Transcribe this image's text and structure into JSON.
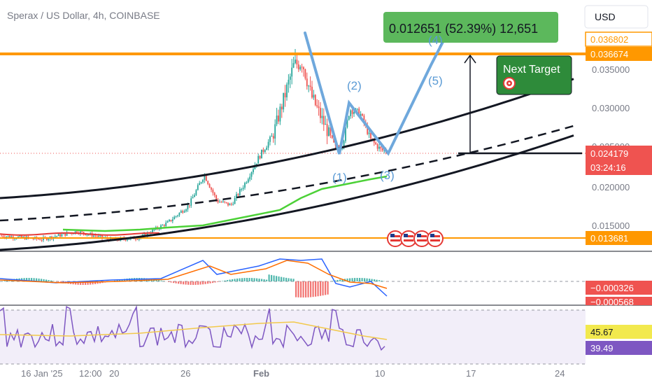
{
  "header": {
    "title": "Sperax / US Dollar, 4h, COINBASE"
  },
  "currency_button": {
    "label": "USD"
  },
  "colors": {
    "up": "#26a69a",
    "down": "#ef5350",
    "orange": "#ff9800",
    "wave": "#6fa8dc",
    "green_target": "#4caf50",
    "macd_line": "#2962ff",
    "signal_line": "#ff6d00",
    "rsi_line": "#7e57c2",
    "rsi_ma": "#f2c94c"
  },
  "chart_data": [
    {
      "type": "candlestick",
      "title": "Sperax / US Dollar, 4h, COINBASE",
      "y_ticks": [
        "0.035000",
        "0.030000",
        "0.025000",
        "0.020000",
        "0.015000"
      ],
      "x_ticks": [
        "16 Jan '25",
        "12:00",
        "20",
        "26",
        "Feb",
        "10",
        "17",
        "24"
      ],
      "ylim": [
        0.0128,
        0.0415
      ],
      "price_labels": [
        {
          "value": "0.036802",
          "style": "orange-outline"
        },
        {
          "value": "0.036674",
          "style": "orange"
        },
        {
          "value": "0.024179",
          "style": "red",
          "countdown": "03:24:16"
        },
        {
          "value": "0.013681",
          "style": "orange"
        }
      ],
      "horizontal_levels": [
        0.036674,
        0.013681
      ],
      "current_price": 0.024179,
      "wave_labels": [
        "(1)",
        "(2)",
        "(3)",
        "(4)",
        "(5)"
      ],
      "measure_label": "0.012651 (52.39%) 12,651",
      "target_label": "Next Target",
      "ema_color": "#4cd137"
    },
    {
      "type": "line",
      "name": "MACD",
      "price_labels": [
        {
          "value": "−0.000326",
          "style": "red"
        },
        {
          "value": "−0.000568",
          "style": "red"
        }
      ]
    },
    {
      "type": "line",
      "name": "RSI",
      "price_labels": [
        {
          "value": "45.67",
          "style": "yellow"
        },
        {
          "value": "39.49",
          "style": "purple"
        }
      ]
    }
  ]
}
